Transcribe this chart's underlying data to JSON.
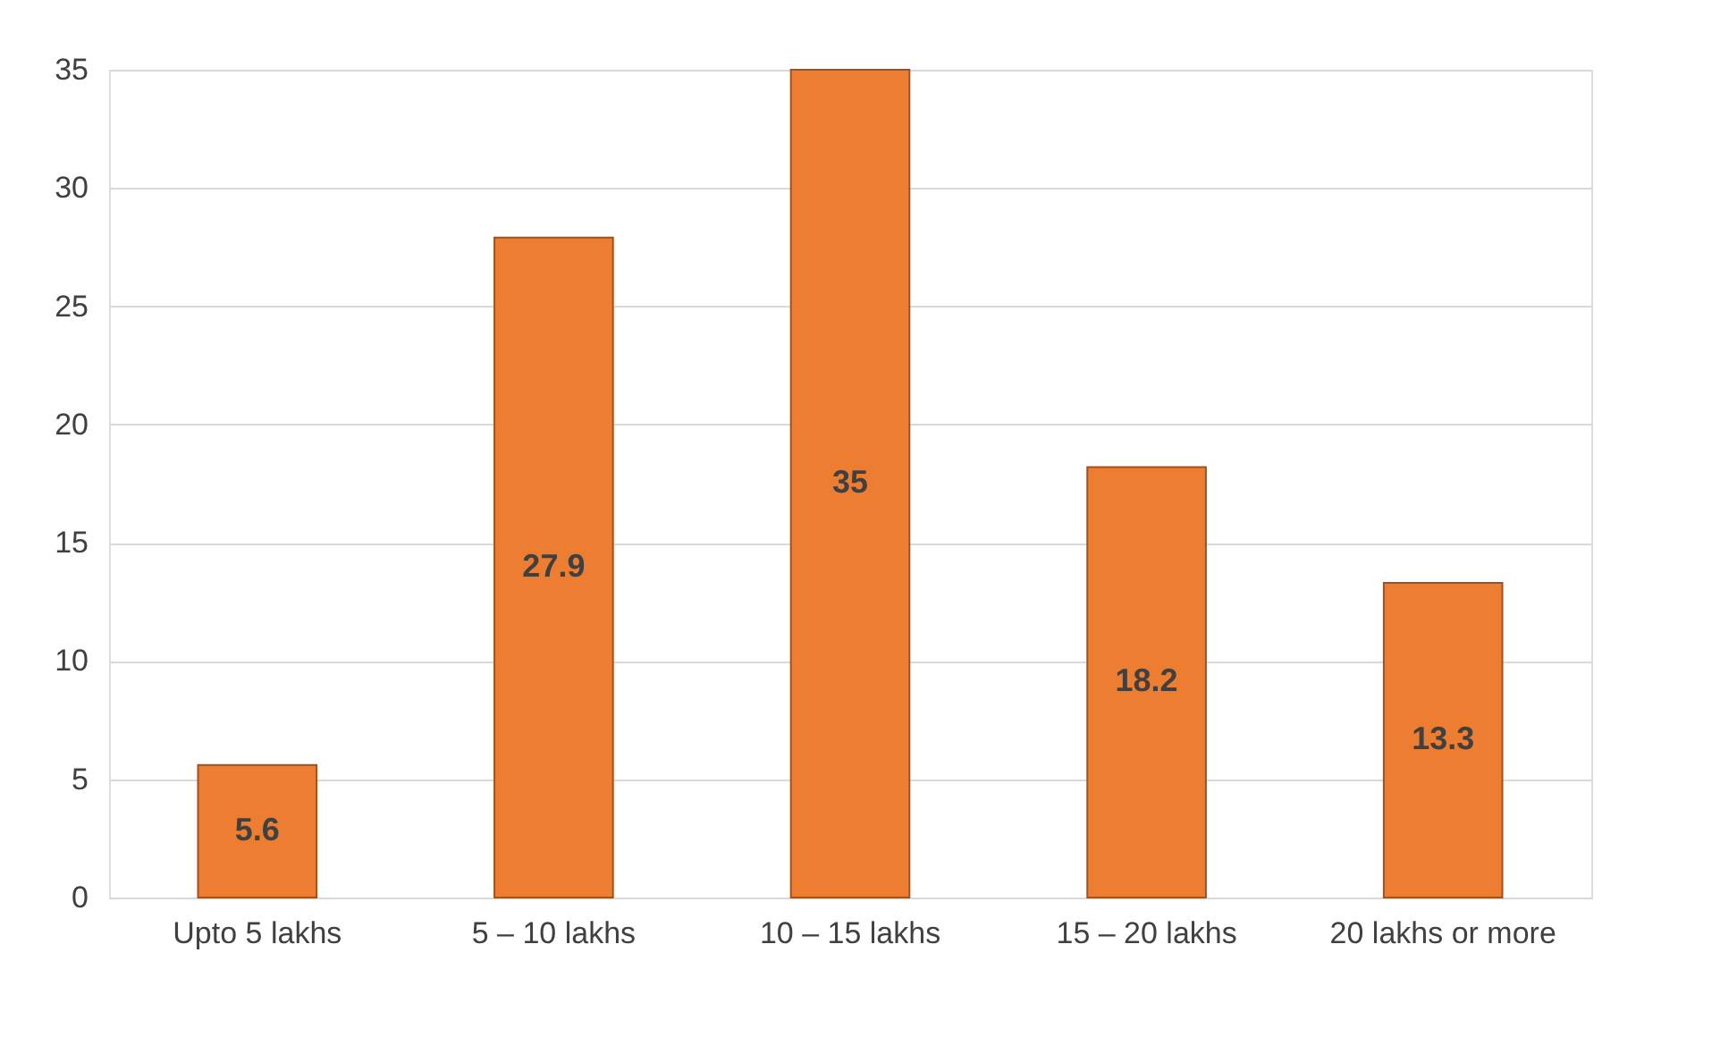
{
  "chart_data": {
    "type": "bar",
    "categories": [
      "Upto 5 lakhs",
      "5 – 10 lakhs",
      "10 – 15 lakhs",
      "15 – 20 lakhs",
      "20 lakhs or more"
    ],
    "values": [
      5.6,
      27.9,
      35,
      18.2,
      13.3
    ],
    "color": "#ed7d31",
    "ylim": [
      0,
      35
    ],
    "yticks": [
      0,
      5,
      10,
      15,
      20,
      25,
      30,
      35
    ],
    "grid": "y",
    "data_labels": true
  }
}
